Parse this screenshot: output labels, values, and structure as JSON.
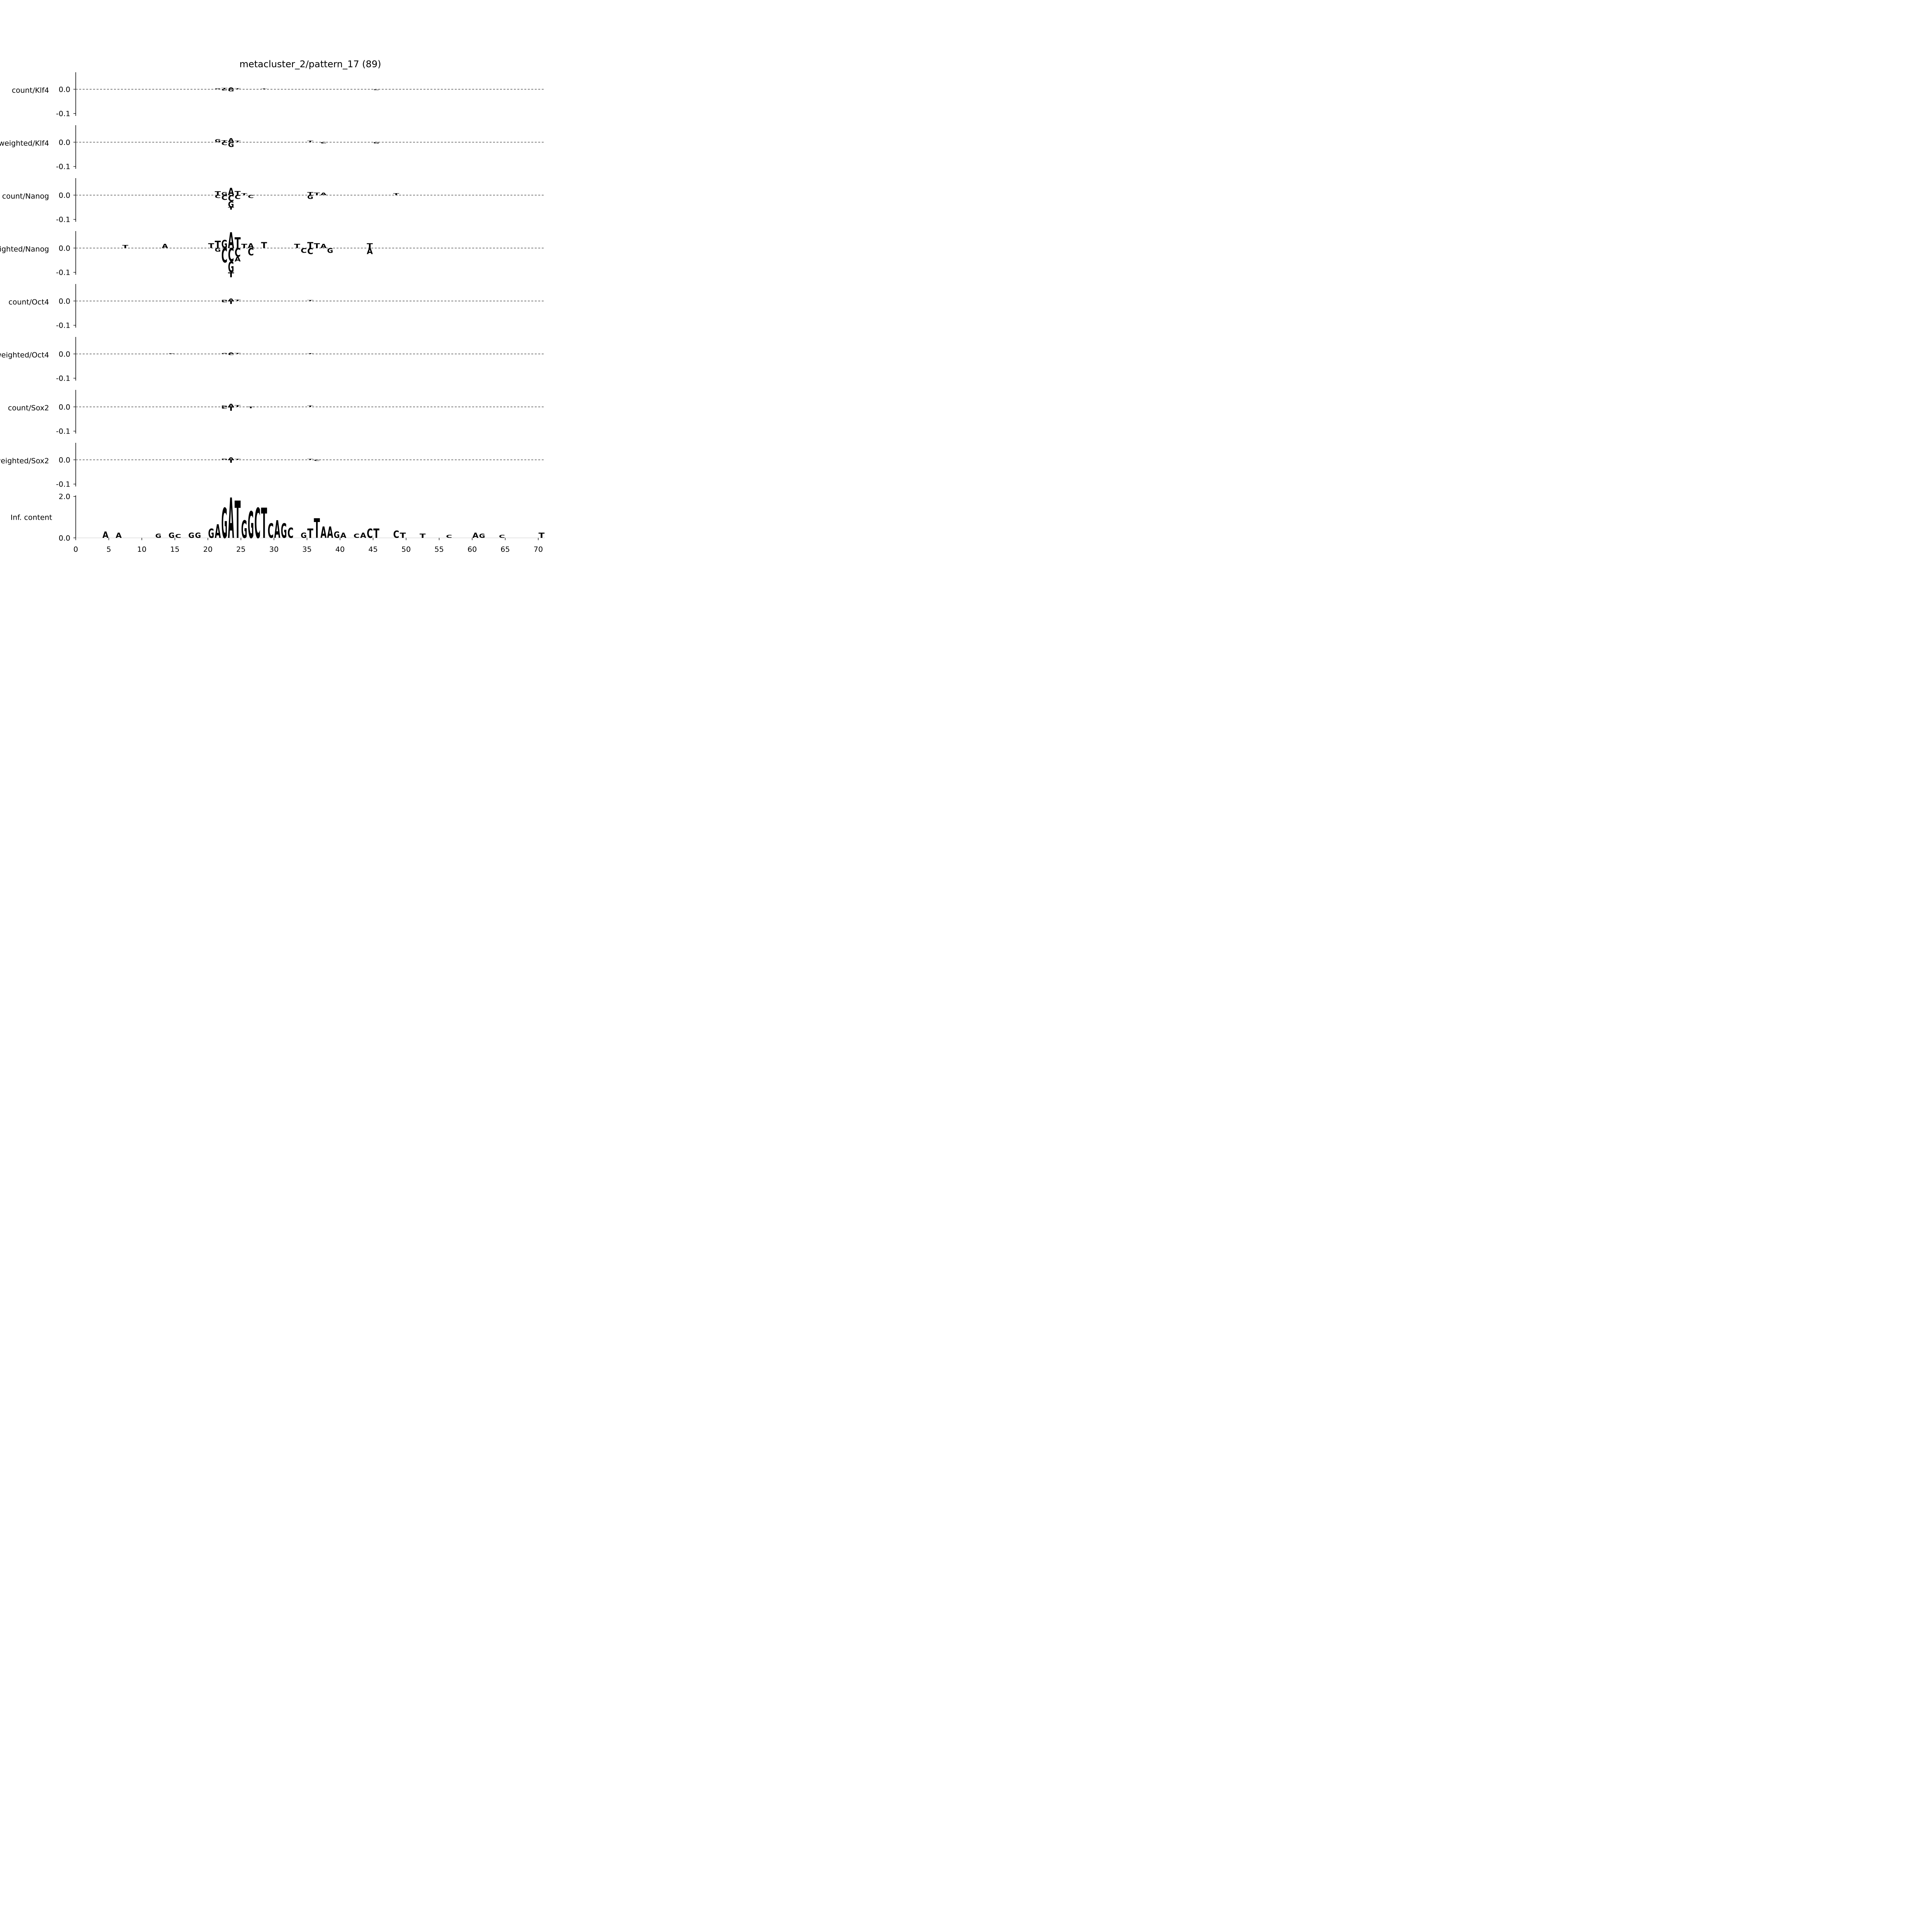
{
  "colors": {
    "A": "#008000",
    "C": "#0000ff",
    "G": "#ffa500",
    "T": "#ff0000",
    "baseline": "#808080",
    "axis": "#000000"
  },
  "chart_data": {
    "type": "sequence-logo",
    "title": "metacluster_2/pattern_17 (89)",
    "x_ticks": [
      "0",
      "5",
      "10",
      "15",
      "20",
      "25",
      "30",
      "35",
      "40",
      "45",
      "50",
      "55",
      "60",
      "65",
      "70"
    ],
    "xlim": [
      0,
      70
    ],
    "tracks": [
      {
        "label": "count/Klf4",
        "ylim": [
          -0.11,
          0.07
        ],
        "yticks": [
          "0.0",
          "-0.1"
        ],
        "letters": [
          {
            "pos": 21,
            "base": "G",
            "val": 0.004
          },
          {
            "pos": 22,
            "base": "T",
            "val": 0.005
          },
          {
            "pos": 23,
            "base": "A",
            "val": 0.008
          },
          {
            "pos": 24,
            "base": "T",
            "val": 0.004
          },
          {
            "pos": 22,
            "base": "C",
            "val": -0.006
          },
          {
            "pos": 23,
            "base": "G",
            "val": -0.009
          },
          {
            "pos": 28,
            "base": "T",
            "val": 0.003
          },
          {
            "pos": 45,
            "base": "C",
            "val": -0.004
          }
        ]
      },
      {
        "label": "weighted/Klf4",
        "ylim": [
          -0.11,
          0.07
        ],
        "yticks": [
          "0.0",
          "-0.1"
        ],
        "letters": [
          {
            "pos": 21,
            "base": "G",
            "val": 0.012
          },
          {
            "pos": 22,
            "base": "T",
            "val": 0.008
          },
          {
            "pos": 23,
            "base": "A",
            "val": 0.016
          },
          {
            "pos": 24,
            "base": "T",
            "val": 0.006
          },
          {
            "pos": 22,
            "base": "C",
            "val": -0.012
          },
          {
            "pos": 23,
            "base": "G",
            "val": -0.02
          },
          {
            "pos": 35,
            "base": "T",
            "val": 0.006
          },
          {
            "pos": 37,
            "base": "C",
            "val": -0.006
          },
          {
            "pos": 45,
            "base": "G",
            "val": -0.006
          }
        ]
      },
      {
        "label": "count/Nanog",
        "ylim": [
          -0.11,
          0.07
        ],
        "yticks": [
          "0.0",
          "-0.1"
        ],
        "letters": [
          {
            "pos": 21,
            "base": "T",
            "val": 0.015
          },
          {
            "pos": 22,
            "base": "G",
            "val": 0.012
          },
          {
            "pos": 23,
            "base": "A",
            "val": 0.03
          },
          {
            "pos": 24,
            "base": "T",
            "val": 0.016
          },
          {
            "pos": 25,
            "base": "T",
            "val": 0.008
          },
          {
            "pos": 21,
            "base": "C",
            "val": -0.012
          },
          {
            "pos": 22,
            "base": "C",
            "val": -0.02
          },
          {
            "pos": 23,
            "base": "C",
            "val": -0.025
          },
          {
            "pos": 24,
            "base": "C",
            "val": -0.016
          },
          {
            "pos": 26,
            "base": "C",
            "val": -0.012
          },
          {
            "pos": 23,
            "base": "G",
            "val": -0.025
          },
          {
            "pos": 23,
            "base": "T",
            "val": -0.01
          },
          {
            "pos": 35,
            "base": "T",
            "val": 0.012
          },
          {
            "pos": 36,
            "base": "T",
            "val": 0.01
          },
          {
            "pos": 35,
            "base": "G",
            "val": -0.016
          },
          {
            "pos": 37,
            "base": "A",
            "val": 0.01
          },
          {
            "pos": 48,
            "base": "T",
            "val": 0.008
          }
        ]
      },
      {
        "label": "weighted/Nanog",
        "ylim": [
          -0.11,
          0.07
        ],
        "yticks": [
          "0.0",
          "-0.1"
        ],
        "letters": [
          {
            "pos": 21,
            "base": "T",
            "val": 0.03
          },
          {
            "pos": 22,
            "base": "G",
            "val": 0.033
          },
          {
            "pos": 23,
            "base": "A",
            "val": 0.065
          },
          {
            "pos": 24,
            "base": "T",
            "val": 0.045
          },
          {
            "pos": 25,
            "base": "T",
            "val": 0.018
          },
          {
            "pos": 26,
            "base": "A",
            "val": 0.02
          },
          {
            "pos": 28,
            "base": "T",
            "val": 0.025
          },
          {
            "pos": 20,
            "base": "T",
            "val": 0.02
          },
          {
            "pos": 21,
            "base": "G",
            "val": -0.015
          },
          {
            "pos": 22,
            "base": "C",
            "val": -0.06
          },
          {
            "pos": 23,
            "base": "C",
            "val": -0.055
          },
          {
            "pos": 24,
            "base": "C",
            "val": -0.035
          },
          {
            "pos": 26,
            "base": "C",
            "val": -0.03
          },
          {
            "pos": 23,
            "base": "G",
            "val": -0.045
          },
          {
            "pos": 23,
            "base": "T",
            "val": -0.02
          },
          {
            "pos": 24,
            "base": "A",
            "val": -0.02
          },
          {
            "pos": 33,
            "base": "T",
            "val": 0.018
          },
          {
            "pos": 35,
            "base": "T",
            "val": 0.025
          },
          {
            "pos": 36,
            "base": "T",
            "val": 0.02
          },
          {
            "pos": 37,
            "base": "A",
            "val": 0.018
          },
          {
            "pos": 35,
            "base": "C",
            "val": -0.025
          },
          {
            "pos": 34,
            "base": "C",
            "val": -0.02
          },
          {
            "pos": 38,
            "base": "G",
            "val": -0.02
          },
          {
            "pos": 44,
            "base": "T",
            "val": 0.02
          },
          {
            "pos": 44,
            "base": "A",
            "val": -0.025
          },
          {
            "pos": 13,
            "base": "A",
            "val": 0.018
          },
          {
            "pos": 7,
            "base": "T",
            "val": 0.012
          }
        ]
      },
      {
        "label": "count/Oct4",
        "ylim": [
          -0.11,
          0.07
        ],
        "yticks": [
          "0.0",
          "-0.1"
        ],
        "letters": [
          {
            "pos": 22,
            "base": "G",
            "val": 0.005
          },
          {
            "pos": 23,
            "base": "A",
            "val": 0.01
          },
          {
            "pos": 24,
            "base": "T",
            "val": 0.005
          },
          {
            "pos": 22,
            "base": "C",
            "val": -0.006
          },
          {
            "pos": 23,
            "base": "T",
            "val": -0.012
          },
          {
            "pos": 35,
            "base": "T",
            "val": 0.004
          }
        ]
      },
      {
        "label": "weighted/Oct4",
        "ylim": [
          -0.11,
          0.07
        ],
        "yticks": [
          "0.0",
          "-0.1"
        ],
        "letters": [
          {
            "pos": 22,
            "base": "G",
            "val": 0.004
          },
          {
            "pos": 23,
            "base": "A",
            "val": 0.006
          },
          {
            "pos": 24,
            "base": "T",
            "val": 0.004
          },
          {
            "pos": 23,
            "base": "C",
            "val": -0.005
          },
          {
            "pos": 14,
            "base": "C",
            "val": 0.003
          },
          {
            "pos": 35,
            "base": "T",
            "val": 0.003
          }
        ]
      },
      {
        "label": "count/Sox2",
        "ylim": [
          -0.11,
          0.07
        ],
        "yticks": [
          "0.0",
          "-0.1"
        ],
        "letters": [
          {
            "pos": 22,
            "base": "G",
            "val": 0.006
          },
          {
            "pos": 23,
            "base": "A",
            "val": 0.012
          },
          {
            "pos": 24,
            "base": "T",
            "val": 0.007
          },
          {
            "pos": 22,
            "base": "C",
            "val": -0.008
          },
          {
            "pos": 23,
            "base": "T",
            "val": -0.016
          },
          {
            "pos": 26,
            "base": "T",
            "val": -0.006
          },
          {
            "pos": 35,
            "base": "T",
            "val": 0.005
          }
        ]
      },
      {
        "label": "weighted/Sox2",
        "ylim": [
          -0.11,
          0.07
        ],
        "yticks": [
          "0.0",
          "-0.1"
        ],
        "letters": [
          {
            "pos": 22,
            "base": "G",
            "val": 0.005
          },
          {
            "pos": 23,
            "base": "A",
            "val": 0.01
          },
          {
            "pos": 24,
            "base": "T",
            "val": 0.004
          },
          {
            "pos": 23,
            "base": "T",
            "val": -0.012
          },
          {
            "pos": 35,
            "base": "T",
            "val": 0.004
          },
          {
            "pos": 36,
            "base": "C",
            "val": -0.005
          }
        ]
      },
      {
        "label": "Inf. content",
        "ylim": [
          0,
          2.05
        ],
        "yticks": [
          "2.0",
          "0.0"
        ],
        "letters": [
          {
            "pos": 4,
            "base": "A",
            "val": 0.3
          },
          {
            "pos": 6,
            "base": "A",
            "val": 0.25
          },
          {
            "pos": 12,
            "base": "G",
            "val": 0.2
          },
          {
            "pos": 14,
            "base": "G",
            "val": 0.25
          },
          {
            "pos": 15,
            "base": "C",
            "val": 0.18
          },
          {
            "pos": 17,
            "base": "G",
            "val": 0.25
          },
          {
            "pos": 18,
            "base": "G",
            "val": 0.25
          },
          {
            "pos": 20,
            "base": "G",
            "val": 0.45
          },
          {
            "pos": 21,
            "base": "A",
            "val": 0.65
          },
          {
            "pos": 22,
            "base": "G",
            "val": 1.45
          },
          {
            "pos": 23,
            "base": "A",
            "val": 1.95
          },
          {
            "pos": 24,
            "base": "T",
            "val": 1.8
          },
          {
            "pos": 25,
            "base": "G",
            "val": 0.85
          },
          {
            "pos": 26,
            "base": "G",
            "val": 1.3
          },
          {
            "pos": 27,
            "base": "C",
            "val": 1.45
          },
          {
            "pos": 28,
            "base": "T",
            "val": 1.45
          },
          {
            "pos": 29,
            "base": "C",
            "val": 0.7
          },
          {
            "pos": 30,
            "base": "A",
            "val": 0.85
          },
          {
            "pos": 31,
            "base": "G",
            "val": 0.7
          },
          {
            "pos": 32,
            "base": "C",
            "val": 0.5
          },
          {
            "pos": 34,
            "base": "G",
            "val": 0.25
          },
          {
            "pos": 35,
            "base": "T",
            "val": 0.45
          },
          {
            "pos": 36,
            "base": "T",
            "val": 0.95
          },
          {
            "pos": 37,
            "base": "A",
            "val": 0.55
          },
          {
            "pos": 38,
            "base": "A",
            "val": 0.55
          },
          {
            "pos": 39,
            "base": "G",
            "val": 0.3
          },
          {
            "pos": 40,
            "base": "A",
            "val": 0.25
          },
          {
            "pos": 42,
            "base": "C",
            "val": 0.2
          },
          {
            "pos": 43,
            "base": "A",
            "val": 0.25
          },
          {
            "pos": 44,
            "base": "C",
            "val": 0.45
          },
          {
            "pos": 45,
            "base": "T",
            "val": 0.45
          },
          {
            "pos": 48,
            "base": "C",
            "val": 0.35
          },
          {
            "pos": 49,
            "base": "T",
            "val": 0.25
          },
          {
            "pos": 52,
            "base": "T",
            "val": 0.2
          },
          {
            "pos": 56,
            "base": "C",
            "val": 0.15
          },
          {
            "pos": 60,
            "base": "A",
            "val": 0.25
          },
          {
            "pos": 61,
            "base": "G",
            "val": 0.2
          },
          {
            "pos": 64,
            "base": "C",
            "val": 0.15
          },
          {
            "pos": 70,
            "base": "T",
            "val": 0.25
          }
        ]
      }
    ]
  }
}
